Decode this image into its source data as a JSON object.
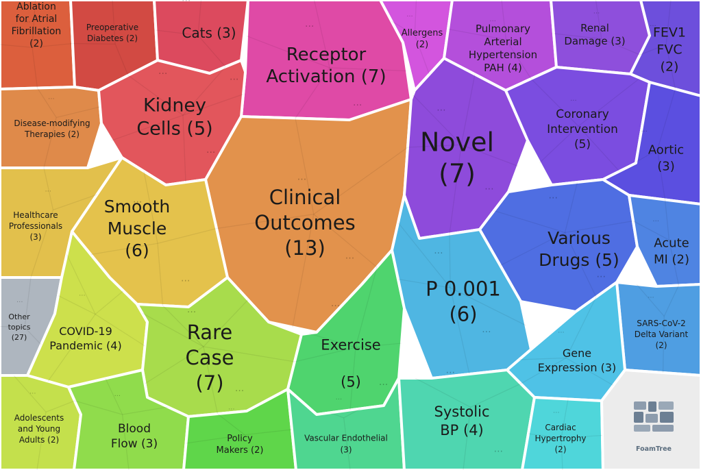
{
  "chart_data": {
    "type": "treemap",
    "layout": "voronoi",
    "groups": [
      {
        "label": "Ablation for Atrial Fibrillation",
        "count": 2,
        "color": "#dc5f3d"
      },
      {
        "label": "Preoperative Diabetes",
        "count": 2,
        "color": "#d24a43"
      },
      {
        "label": "Cats",
        "count": 3,
        "color": "#dc4a5e"
      },
      {
        "label": "Receptor Activation",
        "count": 7,
        "color": "#df4aa6"
      },
      {
        "label": "Allergens",
        "count": 2,
        "color": "#d355de"
      },
      {
        "label": "Pulmonary Arterial Hypertension PAH",
        "count": 4,
        "color": "#b44fdb"
      },
      {
        "label": "Renal Damage",
        "count": 3,
        "color": "#8e4fdc"
      },
      {
        "label": "FEV1 FVC",
        "count": 2,
        "color": "#6d4fdc"
      },
      {
        "label": "Disease-modifying Therapies",
        "count": 2,
        "color": "#df8a4a"
      },
      {
        "label": "Kidney Cells",
        "count": 5,
        "color": "#e2565c"
      },
      {
        "label": "Clinical Outcomes",
        "count": 13,
        "color": "#e2924c"
      },
      {
        "label": "Novel",
        "count": 7,
        "color": "#8e4bdb"
      },
      {
        "label": "Coronary Intervention",
        "count": 5,
        "color": "#7b4de0"
      },
      {
        "label": "Aortic",
        "count": 3,
        "color": "#5b4fe0"
      },
      {
        "label": "Healthcare Professionals",
        "count": 3,
        "color": "#e2c04c"
      },
      {
        "label": "Smooth Muscle",
        "count": 6,
        "color": "#e4c24c"
      },
      {
        "label": "Various Drugs",
        "count": 5,
        "color": "#4f6ee2"
      },
      {
        "label": "Acute MI",
        "count": 2,
        "color": "#4f84e2"
      },
      {
        "label": "Other topics",
        "count": 27,
        "color": "#aeb6bf"
      },
      {
        "label": "COVID-19 Pandemic",
        "count": 4,
        "color": "#cde04c"
      },
      {
        "label": "Rare Case",
        "count": 7,
        "color": "#a8dc4c"
      },
      {
        "label": "Exercise",
        "count": 5,
        "color": "#4fd46e"
      },
      {
        "label": "P 0.001",
        "count": 6,
        "color": "#4fb6e2"
      },
      {
        "label": "SARS-CoV-2 Delta Variant",
        "count": 2,
        "color": "#4f9ee2"
      },
      {
        "label": "Gene Expression",
        "count": 3,
        "color": "#4fc2e6"
      },
      {
        "label": "Adolescents and Young Adults",
        "count": 2,
        "color": "#c4e04c"
      },
      {
        "label": "Blood Flow",
        "count": 3,
        "color": "#90dc4c"
      },
      {
        "label": "Policy Makers",
        "count": 2,
        "color": "#5fd64a"
      },
      {
        "label": "Vascular Endothelial",
        "count": 3,
        "color": "#4fd690"
      },
      {
        "label": "Systolic BP",
        "count": 4,
        "color": "#4fd6b0"
      },
      {
        "label": "Cardiac Hypertrophy",
        "count": 2,
        "color": "#4fd6da"
      }
    ],
    "title": "",
    "watermark": "FoamTree"
  }
}
